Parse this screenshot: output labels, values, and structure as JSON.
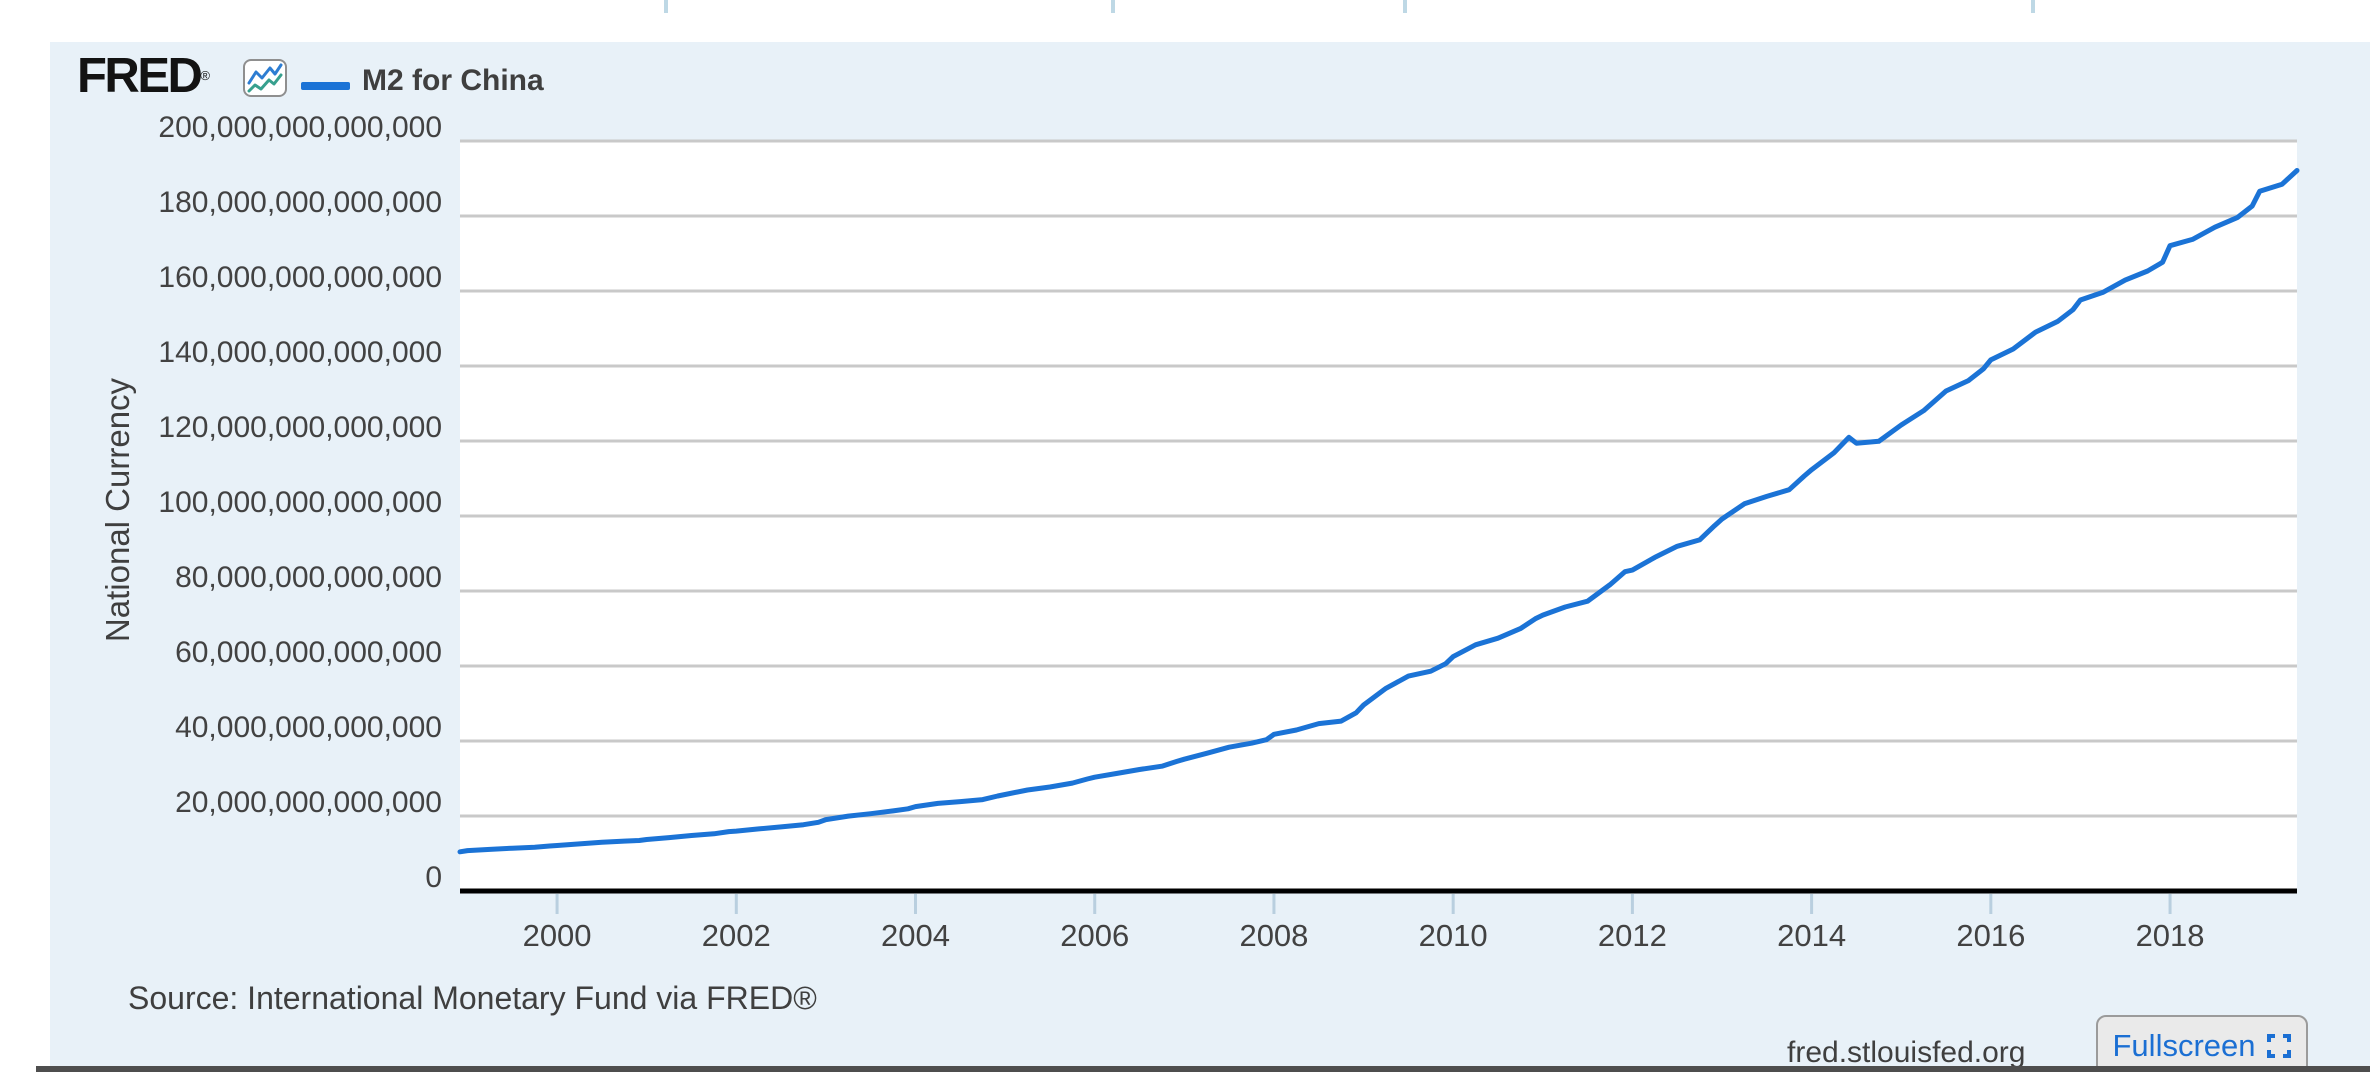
{
  "header": {
    "logo_text": "FRED",
    "logo_reg": "®",
    "legend_label": "M2 for China"
  },
  "y_axis_title": "National Currency",
  "source_note": "Source: International Monetary Fund via FRED®",
  "footer_link": "fred.stlouisfed.org",
  "fullscreen_label": "Fullscreen",
  "colors": {
    "card_background": "#e8f1f8",
    "plot_background": "#ffffff",
    "gridline": "#c9c9c9",
    "x_axis_line": "#000000",
    "tick_mark": "#b9cfdf",
    "series_line": "#1b73d6",
    "label_text": "#424242",
    "link_blue": "#1b6fd3"
  },
  "chart_data": {
    "type": "line",
    "title": "M2 for China",
    "xlabel": "",
    "ylabel": "National Currency",
    "legend_position": "top-left",
    "grid": true,
    "ylim": [
      0,
      200000000000000
    ],
    "y_tick_labels": [
      "200,000,000,000,000",
      "180,000,000,000,000",
      "160,000,000,000,000",
      "140,000,000,000,000",
      "120,000,000,000,000",
      "100,000,000,000,000",
      "80,000,000,000,000",
      "60,000,000,000,000",
      "40,000,000,000,000",
      "20,000,000,000,000",
      "0"
    ],
    "x_tick_labels": [
      2000,
      2002,
      2004,
      2006,
      2008,
      2010,
      2012,
      2014,
      2016,
      2018
    ],
    "x_range_decimal_years": [
      1998.9167,
      2019.4167
    ],
    "value_scale": 1000000000000,
    "series": [
      {
        "name": "M2 for China",
        "color": "#1b73d6",
        "points_unit": "trillions of national currency",
        "points": [
          [
            "1998-12",
            10.45
          ],
          [
            "1999-01",
            10.76
          ],
          [
            "1999-04",
            11.09
          ],
          [
            "1999-07",
            11.41
          ],
          [
            "1999-10",
            11.65
          ],
          [
            "1999-12",
            11.99
          ],
          [
            "2000-01",
            12.12
          ],
          [
            "2000-04",
            12.55
          ],
          [
            "2000-07",
            13.0
          ],
          [
            "2000-10",
            13.31
          ],
          [
            "2000-12",
            13.46
          ],
          [
            "2001-01",
            13.72
          ],
          [
            "2001-04",
            14.25
          ],
          [
            "2001-07",
            14.81
          ],
          [
            "2001-10",
            15.26
          ],
          [
            "2001-12",
            15.83
          ],
          [
            "2002-01",
            15.96
          ],
          [
            "2002-04",
            16.57
          ],
          [
            "2002-07",
            17.1
          ],
          [
            "2002-10",
            17.69
          ],
          [
            "2002-12",
            18.32
          ],
          [
            "2003-01",
            19.05
          ],
          [
            "2003-04",
            19.96
          ],
          [
            "2003-07",
            20.62
          ],
          [
            "2003-10",
            21.37
          ],
          [
            "2003-12",
            21.92
          ],
          [
            "2004-01",
            22.51
          ],
          [
            "2004-04",
            23.35
          ],
          [
            "2004-07",
            23.83
          ],
          [
            "2004-10",
            24.36
          ],
          [
            "2004-12",
            25.32
          ],
          [
            "2005-01",
            25.74
          ],
          [
            "2005-04",
            26.93
          ],
          [
            "2005-07",
            27.73
          ],
          [
            "2005-10",
            28.76
          ],
          [
            "2005-12",
            29.88
          ],
          [
            "2006-01",
            30.35
          ],
          [
            "2006-04",
            31.37
          ],
          [
            "2006-07",
            32.39
          ],
          [
            "2006-10",
            33.27
          ],
          [
            "2006-12",
            34.56
          ],
          [
            "2007-01",
            35.15
          ],
          [
            "2007-04",
            36.73
          ],
          [
            "2007-07",
            38.34
          ],
          [
            "2007-10",
            39.42
          ],
          [
            "2007-12",
            40.34
          ],
          [
            "2008-01",
            41.78
          ],
          [
            "2008-04",
            42.92
          ],
          [
            "2008-07",
            44.64
          ],
          [
            "2008-10",
            45.31
          ],
          [
            "2008-12",
            47.52
          ],
          [
            "2009-01",
            49.61
          ],
          [
            "2009-04",
            54.05
          ],
          [
            "2009-07",
            57.3
          ],
          [
            "2009-10",
            58.62
          ],
          [
            "2009-12",
            60.62
          ],
          [
            "2010-01",
            62.51
          ],
          [
            "2010-04",
            65.66
          ],
          [
            "2010-07",
            67.41
          ],
          [
            "2010-10",
            69.98
          ],
          [
            "2010-12",
            72.59
          ],
          [
            "2011-01",
            73.56
          ],
          [
            "2011-04",
            75.73
          ],
          [
            "2011-07",
            77.29
          ],
          [
            "2011-10",
            81.68
          ],
          [
            "2011-12",
            85.16
          ],
          [
            "2012-01",
            85.58
          ],
          [
            "2012-04",
            88.96
          ],
          [
            "2012-07",
            91.91
          ],
          [
            "2012-10",
            93.64
          ],
          [
            "2012-12",
            97.42
          ],
          [
            "2013-01",
            99.21
          ],
          [
            "2013-04",
            103.26
          ],
          [
            "2013-07",
            105.23
          ],
          [
            "2013-10",
            107.02
          ],
          [
            "2013-12",
            110.65
          ],
          [
            "2014-01",
            112.35
          ],
          [
            "2014-04",
            116.88
          ],
          [
            "2014-06",
            120.96
          ],
          [
            "2014-07",
            119.42
          ],
          [
            "2014-10",
            119.92
          ],
          [
            "2014-12",
            122.84
          ],
          [
            "2015-01",
            124.27
          ],
          [
            "2015-04",
            128.09
          ],
          [
            "2015-07",
            133.34
          ],
          [
            "2015-10",
            136.1
          ],
          [
            "2015-12",
            139.23
          ],
          [
            "2016-01",
            141.63
          ],
          [
            "2016-04",
            144.52
          ],
          [
            "2016-07",
            149.05
          ],
          [
            "2016-10",
            151.95
          ],
          [
            "2016-12",
            155.01
          ],
          [
            "2017-01",
            157.59
          ],
          [
            "2017-04",
            159.63
          ],
          [
            "2017-07",
            162.9
          ],
          [
            "2017-10",
            165.34
          ],
          [
            "2017-12",
            167.68
          ],
          [
            "2018-01",
            172.08
          ],
          [
            "2018-04",
            173.77
          ],
          [
            "2018-07",
            177.02
          ],
          [
            "2018-10",
            179.56
          ],
          [
            "2018-12",
            182.67
          ],
          [
            "2019-01",
            186.59
          ],
          [
            "2019-04",
            188.47
          ],
          [
            "2019-06",
            192.14
          ]
        ]
      }
    ]
  }
}
